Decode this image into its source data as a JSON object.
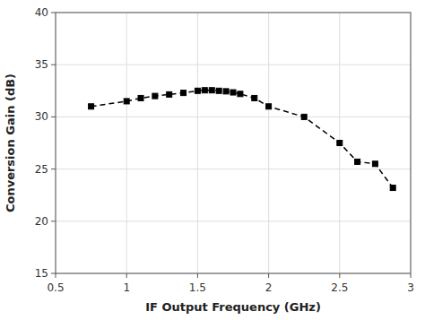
{
  "chart_data": {
    "type": "line",
    "x": [
      0.75,
      1.0,
      1.1,
      1.2,
      1.3,
      1.4,
      1.5,
      1.55,
      1.6,
      1.65,
      1.7,
      1.75,
      1.8,
      1.9,
      2.0,
      2.25,
      2.5,
      2.625,
      2.75,
      2.875
    ],
    "values": [
      31.0,
      31.5,
      31.8,
      32.0,
      32.15,
      32.3,
      32.5,
      32.55,
      32.55,
      32.5,
      32.45,
      32.35,
      32.2,
      31.8,
      31.0,
      30.0,
      27.5,
      25.7,
      25.5,
      23.2
    ],
    "xlabel": "IF Output Frequency (GHz)",
    "ylabel": "Conversion Gain (dB)",
    "xlim": [
      0.5,
      3.0
    ],
    "ylim": [
      15,
      40
    ],
    "xticks": [
      0.5,
      1,
      1.5,
      2,
      2.5,
      3
    ],
    "yticks": [
      15,
      20,
      25,
      30,
      35,
      40
    ],
    "grid": true,
    "color": "#000000",
    "marker": "square",
    "line_style": "dashed"
  }
}
